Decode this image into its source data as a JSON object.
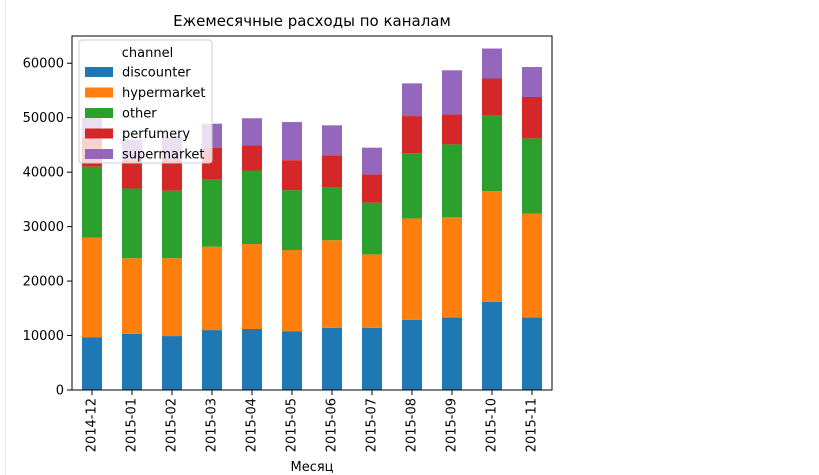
{
  "chart_data": {
    "type": "bar",
    "stacked": true,
    "title": "Ежемесячные расходы по каналам",
    "xlabel": "Месяц",
    "ylabel": "",
    "ylim": [
      0,
      65000
    ],
    "yticks": [
      0,
      10000,
      20000,
      30000,
      40000,
      50000,
      60000
    ],
    "grid": false,
    "legend": {
      "title": "channel",
      "placement": "top-left"
    },
    "categories": [
      "2014-12",
      "2015-01",
      "2015-02",
      "2015-03",
      "2015-04",
      "2015-05",
      "2015-06",
      "2015-07",
      "2015-08",
      "2015-09",
      "2015-10",
      "2015-11"
    ],
    "series": [
      {
        "name": "discounter",
        "color": "#1f77b4",
        "values": [
          9700,
          10300,
          9900,
          11000,
          11200,
          10800,
          11400,
          11400,
          12900,
          13300,
          16200,
          13300
        ]
      },
      {
        "name": "hypermarket",
        "color": "#ff7f0e",
        "values": [
          18300,
          13900,
          14300,
          15300,
          15600,
          14900,
          16100,
          13500,
          18600,
          18400,
          20300,
          19100
        ]
      },
      {
        "name": "other",
        "color": "#2ca02c",
        "values": [
          13000,
          12800,
          12400,
          12300,
          13500,
          11000,
          9700,
          9500,
          12000,
          13400,
          14000,
          13800
        ]
      },
      {
        "name": "perfumery",
        "color": "#d62728",
        "values": [
          5500,
          5300,
          5800,
          5900,
          4600,
          5500,
          5900,
          5200,
          6800,
          5500,
          6700,
          7600
        ]
      },
      {
        "name": "supermarket",
        "color": "#9467bd",
        "values": [
          3500,
          3700,
          4100,
          4400,
          5000,
          7000,
          5500,
          4900,
          6000,
          8100,
          5500,
          5500
        ]
      }
    ]
  }
}
